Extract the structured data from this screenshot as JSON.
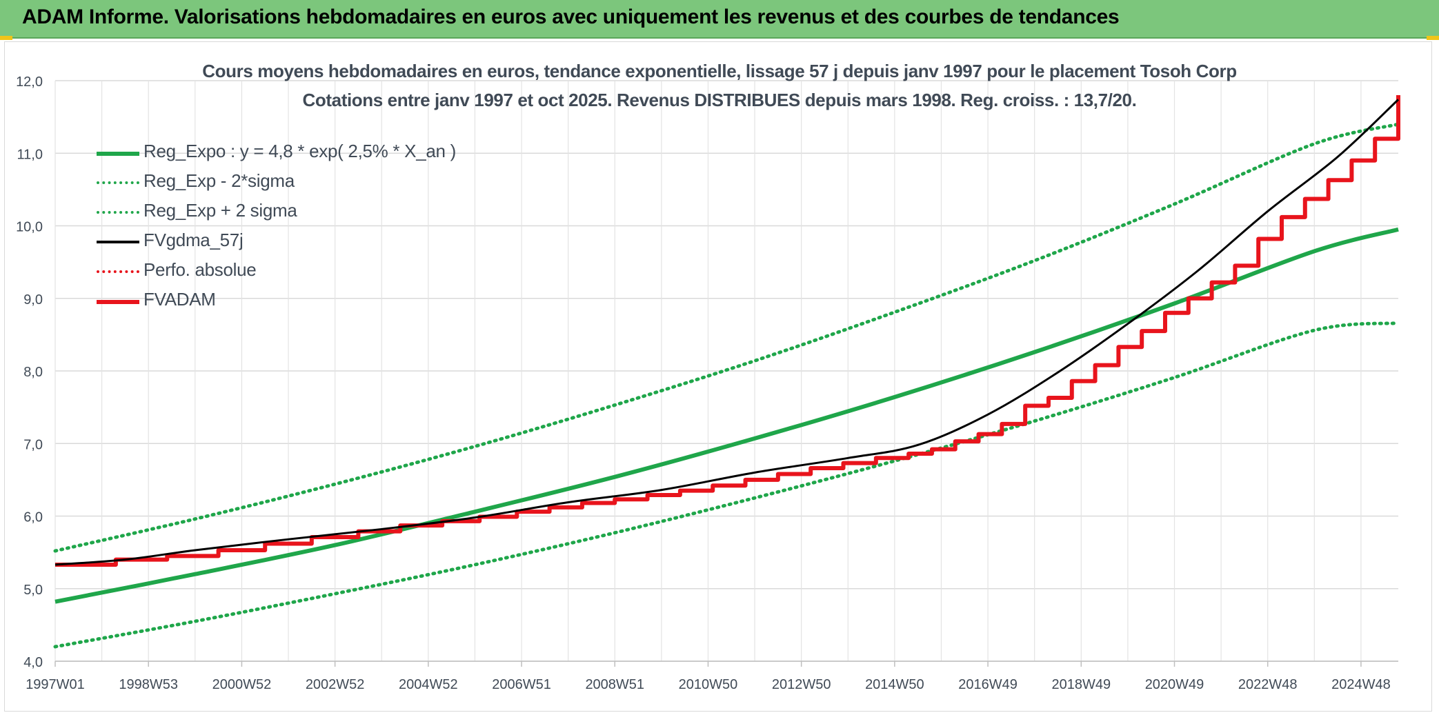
{
  "banner": {
    "title": "ADAM Informe. Valorisations hebdomadaires en euros avec uniquement les revenus et des courbes de tendances"
  },
  "chart_data": {
    "type": "line",
    "title_line1": "Cours moyens hebdomadaires en euros, tendance exponentielle, lissage 57 j depuis janv 1997 pour le placement Tosoh Corp",
    "title_line2": "Cotations entre janv 1997 et oct 2025. Revenus DISTRIBUES depuis mars 1998. Reg. croiss. : 13,7/20.",
    "xlabel": "",
    "ylabel": "",
    "ylim": [
      4.0,
      12.0
    ],
    "xlim": [
      1997.0,
      2025.8
    ],
    "grid": true,
    "legend_position": "top-left",
    "y_ticks": [
      "4,0",
      "5,0",
      "6,0",
      "7,0",
      "8,0",
      "9,0",
      "10,0",
      "11,0",
      "12,0"
    ],
    "x_ticks": [
      {
        "label": "1997W01",
        "x": 1997.0
      },
      {
        "label": "1998W53",
        "x": 1999.0
      },
      {
        "label": "2000W52",
        "x": 2001.0
      },
      {
        "label": "2002W52",
        "x": 2003.0
      },
      {
        "label": "2004W52",
        "x": 2005.0
      },
      {
        "label": "2006W51",
        "x": 2007.0
      },
      {
        "label": "2008W51",
        "x": 2009.0
      },
      {
        "label": "2010W50",
        "x": 2011.0
      },
      {
        "label": "2012W50",
        "x": 2013.0
      },
      {
        "label": "2014W50",
        "x": 2015.0
      },
      {
        "label": "2016W49",
        "x": 2017.0
      },
      {
        "label": "2018W49",
        "x": 2019.0
      },
      {
        "label": "2020W49",
        "x": 2021.0
      },
      {
        "label": "2022W48",
        "x": 2023.0
      },
      {
        "label": "2024W48",
        "x": 2025.0
      }
    ],
    "series": [
      {
        "name": "Reg_Expo : y = 4,8 * exp( 2,5% *  X_an )",
        "color": "#1fa64a",
        "style": "solid",
        "width": 6,
        "x": [
          1997.0,
          2000.0,
          2003.0,
          2006.0,
          2009.0,
          2012.0,
          2015.0,
          2018.0,
          2021.0,
          2024.0,
          2025.8
        ],
        "values": [
          4.82,
          5.2,
          5.6,
          6.06,
          6.54,
          7.07,
          7.64,
          8.26,
          8.93,
          9.65,
          9.95
        ]
      },
      {
        "name": "Reg_Exp - 2*sigma",
        "color": "#1fa64a",
        "style": "dotted",
        "width": 5,
        "x": [
          1997.0,
          2000.0,
          2003.0,
          2006.0,
          2009.0,
          2012.0,
          2015.0,
          2018.0,
          2021.0,
          2024.0,
          2025.8
        ],
        "values": [
          4.2,
          4.55,
          4.93,
          5.33,
          5.77,
          6.25,
          6.76,
          7.31,
          7.91,
          8.56,
          8.66
        ]
      },
      {
        "name": "Reg_Exp + 2 sigma",
        "color": "#1fa64a",
        "style": "dotted",
        "width": 5,
        "x": [
          1997.0,
          2000.0,
          2003.0,
          2006.0,
          2009.0,
          2012.0,
          2015.0,
          2018.0,
          2021.0,
          2024.0,
          2025.8
        ],
        "values": [
          5.52,
          5.96,
          6.44,
          6.96,
          7.53,
          8.14,
          8.81,
          9.52,
          10.3,
          11.13,
          11.4
        ]
      },
      {
        "name": "FVgdma_57j",
        "color": "#000000",
        "style": "solid",
        "width": 3,
        "x": [
          1997.0,
          1998.5,
          2000.0,
          2002.0,
          2004.0,
          2006.0,
          2008.0,
          2010.0,
          2012.0,
          2014.0,
          2015.5,
          2017.0,
          2018.5,
          2020.0,
          2021.5,
          2023.0,
          2024.5,
          2025.8
        ],
        "values": [
          5.33,
          5.4,
          5.53,
          5.68,
          5.82,
          5.98,
          6.19,
          6.36,
          6.6,
          6.8,
          6.98,
          7.4,
          7.98,
          8.65,
          9.38,
          10.2,
          10.95,
          11.74
        ]
      },
      {
        "name": "Perfo. absolue",
        "color": "#e8141c",
        "style": "dotted",
        "width": 3,
        "x": [],
        "values": []
      },
      {
        "name": "FVADAM",
        "color": "#e8141c",
        "style": "step",
        "width": 6,
        "x": [
          1997.0,
          1998.3,
          1999.4,
          2000.5,
          2001.5,
          2002.5,
          2003.5,
          2004.4,
          2005.3,
          2006.1,
          2006.9,
          2007.6,
          2008.3,
          2009.0,
          2009.7,
          2010.4,
          2011.1,
          2011.8,
          2012.5,
          2013.2,
          2013.9,
          2014.6,
          2015.3,
          2015.8,
          2016.3,
          2016.8,
          2017.3,
          2017.8,
          2018.3,
          2018.8,
          2019.3,
          2019.8,
          2020.3,
          2020.8,
          2021.3,
          2021.8,
          2022.3,
          2022.8,
          2023.3,
          2023.8,
          2024.3,
          2024.8,
          2025.3,
          2025.8
        ],
        "values": [
          5.33,
          5.4,
          5.45,
          5.53,
          5.62,
          5.71,
          5.79,
          5.87,
          5.93,
          5.99,
          6.06,
          6.12,
          6.18,
          6.23,
          6.29,
          6.35,
          6.42,
          6.5,
          6.58,
          6.66,
          6.73,
          6.8,
          6.86,
          6.92,
          7.03,
          7.13,
          7.27,
          7.52,
          7.63,
          7.86,
          8.08,
          8.33,
          8.55,
          8.8,
          9.0,
          9.22,
          9.45,
          9.82,
          10.12,
          10.37,
          10.63,
          10.9,
          11.2,
          11.8
        ]
      }
    ]
  }
}
